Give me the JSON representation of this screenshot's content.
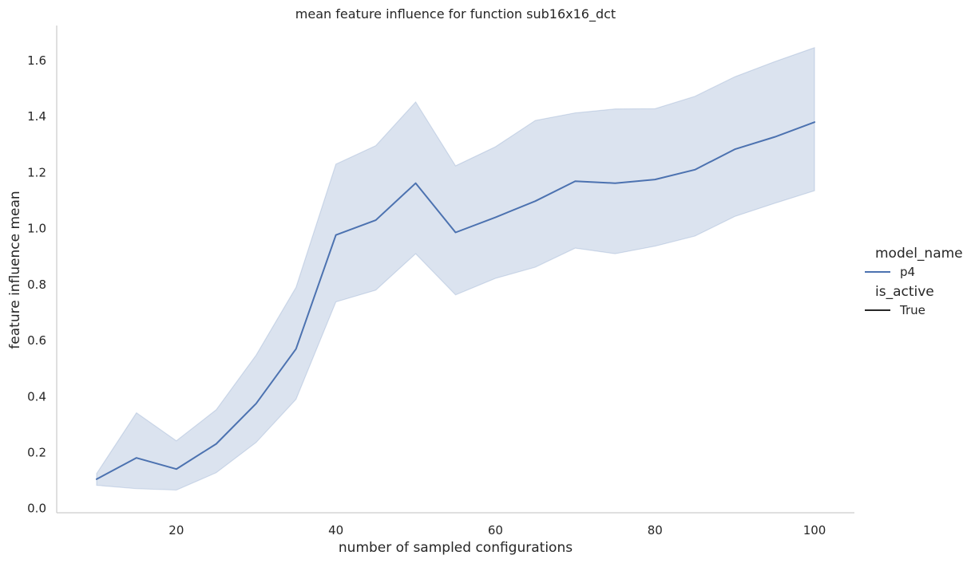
{
  "chart_data": {
    "type": "line",
    "title": "mean feature influence for function sub16x16_dct",
    "xlabel": "number of sampled configurations",
    "ylabel": "feature influence mean",
    "xlim": [
      5,
      105
    ],
    "ylim": [
      -0.015,
      1.725
    ],
    "x_ticks": [
      20,
      40,
      60,
      80,
      100
    ],
    "y_ticks": [
      0.0,
      0.2,
      0.4,
      0.6,
      0.8,
      1.0,
      1.2,
      1.4,
      1.6
    ],
    "y_tick_labels": [
      "0.0",
      "0.2",
      "0.4",
      "0.6",
      "0.8",
      "1.0",
      "1.2",
      "1.4",
      "1.6"
    ],
    "grid": false,
    "legend_position": "right",
    "legend": {
      "hue_title": "model_name",
      "hue_entries": [
        {
          "label": "p4",
          "color": "#4c72b0"
        }
      ],
      "style_title": "is_active",
      "style_entries": [
        {
          "label": "True",
          "color": "#262626"
        }
      ]
    },
    "series": [
      {
        "name": "p4",
        "color": "#4c72b0",
        "x": [
          10,
          15,
          20,
          25,
          30,
          35,
          40,
          45,
          50,
          55,
          60,
          65,
          70,
          75,
          80,
          85,
          90,
          95,
          100
        ],
        "y": [
          0.105,
          0.181,
          0.141,
          0.231,
          0.375,
          0.57,
          0.977,
          1.03,
          1.162,
          0.986,
          1.04,
          1.098,
          1.169,
          1.162,
          1.175,
          1.21,
          1.283,
          1.327,
          1.38
        ],
        "ci_low": [
          0.083,
          0.071,
          0.066,
          0.128,
          0.236,
          0.39,
          0.738,
          0.78,
          0.91,
          0.763,
          0.822,
          0.862,
          0.93,
          0.91,
          0.937,
          0.973,
          1.043,
          1.09,
          1.135
        ],
        "ci_high": [
          0.125,
          0.342,
          0.242,
          0.353,
          0.548,
          0.79,
          1.23,
          1.296,
          1.452,
          1.224,
          1.292,
          1.386,
          1.413,
          1.427,
          1.428,
          1.472,
          1.542,
          1.596,
          1.646
        ]
      }
    ],
    "ci_fill_color": "#4c72b0"
  }
}
